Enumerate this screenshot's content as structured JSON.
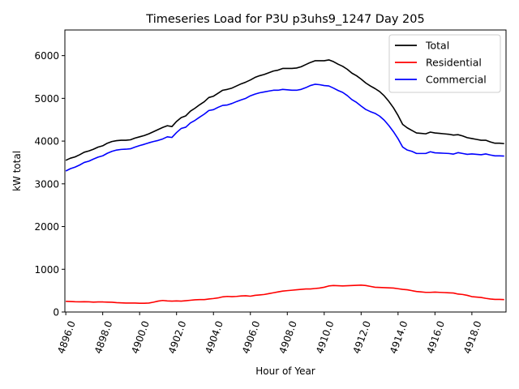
{
  "chart_data": {
    "type": "line",
    "title": "Timeseries Load for P3U p3uhs9_1247  Day 205",
    "xlabel": "Hour of Year",
    "ylabel": "kW total",
    "xlim": [
      4895.95,
      4919.85
    ],
    "ylim": [
      0,
      6600
    ],
    "x_ticks": [
      4896,
      4898,
      4900,
      4902,
      4904,
      4906,
      4908,
      4910,
      4912,
      4914,
      4916,
      4918
    ],
    "x_tick_labels": [
      "4896.0",
      "4898.0",
      "4900.0",
      "4902.0",
      "4904.0",
      "4906.0",
      "4908.0",
      "4910.0",
      "4912.0",
      "4914.0",
      "4916.0",
      "4918.0"
    ],
    "y_ticks": [
      0,
      1000,
      2000,
      3000,
      4000,
      5000,
      6000
    ],
    "y_tick_labels": [
      "0",
      "1000",
      "2000",
      "3000",
      "4000",
      "5000",
      "6000"
    ],
    "grid": false,
    "legend_position": "top-right",
    "x": [
      4896.0,
      4896.25,
      4896.5,
      4896.75,
      4897.0,
      4897.25,
      4897.5,
      4897.75,
      4898.0,
      4898.25,
      4898.5,
      4898.75,
      4899.0,
      4899.25,
      4899.5,
      4899.75,
      4900.0,
      4900.25,
      4900.5,
      4900.75,
      4901.0,
      4901.25,
      4901.5,
      4901.75,
      4902.0,
      4902.25,
      4902.5,
      4902.75,
      4903.0,
      4903.25,
      4903.5,
      4903.75,
      4904.0,
      4904.25,
      4904.5,
      4904.75,
      4905.0,
      4905.25,
      4905.5,
      4905.75,
      4906.0,
      4906.25,
      4906.5,
      4906.75,
      4907.0,
      4907.25,
      4907.5,
      4907.75,
      4908.0,
      4908.25,
      4908.5,
      4908.75,
      4909.0,
      4909.25,
      4909.5,
      4909.75,
      4910.0,
      4910.25,
      4910.5,
      4910.75,
      4911.0,
      4911.25,
      4911.5,
      4911.75,
      4912.0,
      4912.25,
      4912.5,
      4912.75,
      4913.0,
      4913.25,
      4913.5,
      4913.75,
      4914.0,
      4914.25,
      4914.5,
      4914.75,
      4915.0,
      4915.25,
      4915.5,
      4915.75,
      4916.0,
      4916.25,
      4916.5,
      4916.75,
      4917.0,
      4917.25,
      4917.5,
      4917.75,
      4918.0,
      4918.25,
      4918.5,
      4918.75,
      4919.0,
      4919.25,
      4919.5,
      4919.75
    ],
    "series": [
      {
        "name": "Total",
        "color": "#000000",
        "values": [
          3550,
          3600,
          3630,
          3680,
          3740,
          3770,
          3810,
          3860,
          3890,
          3950,
          3990,
          4010,
          4020,
          4020,
          4030,
          4070,
          4100,
          4130,
          4170,
          4220,
          4270,
          4320,
          4360,
          4340,
          4460,
          4550,
          4590,
          4700,
          4770,
          4850,
          4920,
          5020,
          5050,
          5120,
          5190,
          5210,
          5240,
          5290,
          5340,
          5380,
          5430,
          5490,
          5530,
          5560,
          5600,
          5640,
          5660,
          5700,
          5700,
          5700,
          5710,
          5740,
          5790,
          5840,
          5880,
          5880,
          5880,
          5900,
          5860,
          5800,
          5750,
          5680,
          5590,
          5530,
          5450,
          5360,
          5290,
          5230,
          5160,
          5060,
          4930,
          4780,
          4600,
          4390,
          4310,
          4250,
          4190,
          4180,
          4170,
          4210,
          4190,
          4180,
          4170,
          4160,
          4140,
          4150,
          4120,
          4080,
          4060,
          4040,
          4020,
          4020,
          3980,
          3950,
          3950,
          3940
        ]
      },
      {
        "name": "Residential",
        "color": "#ff0000",
        "values": [
          250,
          245,
          240,
          238,
          240,
          238,
          232,
          235,
          235,
          232,
          228,
          220,
          215,
          210,
          210,
          210,
          205,
          205,
          210,
          230,
          255,
          270,
          260,
          255,
          260,
          255,
          265,
          275,
          285,
          290,
          290,
          305,
          315,
          330,
          355,
          365,
          360,
          365,
          375,
          380,
          370,
          390,
          400,
          410,
          430,
          450,
          470,
          490,
          500,
          510,
          520,
          530,
          540,
          540,
          550,
          560,
          580,
          610,
          620,
          615,
          610,
          615,
          620,
          625,
          630,
          620,
          600,
          580,
          575,
          570,
          565,
          560,
          545,
          530,
          520,
          500,
          480,
          470,
          460,
          460,
          465,
          460,
          455,
          450,
          445,
          420,
          410,
          390,
          360,
          350,
          340,
          320,
          305,
          295,
          295,
          290
        ]
      },
      {
        "name": "Commercial",
        "color": "#0000ff",
        "values": [
          3300,
          3355,
          3390,
          3440,
          3500,
          3530,
          3580,
          3625,
          3655,
          3715,
          3760,
          3790,
          3805,
          3810,
          3820,
          3860,
          3895,
          3925,
          3960,
          3990,
          4015,
          4050,
          4100,
          4085,
          4200,
          4295,
          4325,
          4425,
          4485,
          4560,
          4630,
          4715,
          4735,
          4790,
          4835,
          4845,
          4880,
          4925,
          4965,
          5000,
          5060,
          5100,
          5130,
          5150,
          5170,
          5190,
          5190,
          5210,
          5200,
          5190,
          5190,
          5210,
          5250,
          5300,
          5330,
          5320,
          5300,
          5290,
          5240,
          5185,
          5140,
          5065,
          4970,
          4905,
          4820,
          4740,
          4690,
          4650,
          4585,
          4490,
          4365,
          4220,
          4055,
          3860,
          3790,
          3760,
          3710,
          3710,
          3710,
          3750,
          3725,
          3720,
          3715,
          3710,
          3695,
          3730,
          3710,
          3690,
          3700,
          3690,
          3680,
          3700,
          3675,
          3655,
          3655,
          3650
        ]
      }
    ]
  }
}
